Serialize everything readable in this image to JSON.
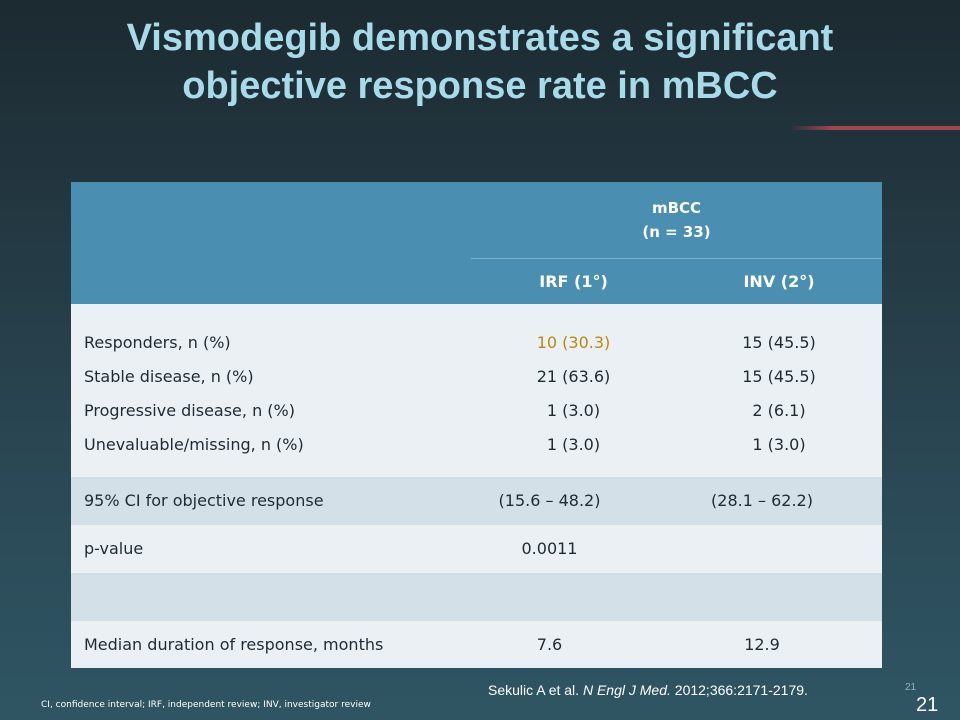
{
  "title": {
    "line1": "Vismodegib demonstrates a significant",
    "line2": "objective response rate in mBCC"
  },
  "table": {
    "group_header": {
      "line1": "mBCC",
      "line2": "(n = 33)"
    },
    "columns": [
      "IRF (1°)",
      "INV (2°)"
    ],
    "block_rows": [
      {
        "label": "Responders, n (%)",
        "irf": "10 (30.3)",
        "inv": "15 (45.5)"
      },
      {
        "label": "Stable disease, n (%)",
        "irf": "21 (63.6)",
        "inv": "15 (45.5)"
      },
      {
        "label": "Progressive disease, n (%)",
        "irf": "1 (3.0)",
        "inv": "2 (6.1)"
      },
      {
        "label": "Unevaluable/missing, n (%)",
        "irf": "1 (3.0)",
        "inv": "1 (3.0)"
      }
    ],
    "ci_row": {
      "label": "95% CI for objective response",
      "irf": "(15.6 – 48.2)",
      "inv": "(28.1 – 62.2)"
    },
    "p_row": {
      "label": "p-value",
      "irf": "0.0011",
      "inv": ""
    },
    "median_row": {
      "label": "Median duration of response, months",
      "irf": "7.6",
      "inv": "12.9"
    }
  },
  "citation": {
    "prefix": "Sekulic A et al. ",
    "journal": "N Engl J Med.",
    "suffix": " 2012;366:2171-2179."
  },
  "footnote": "CI, confidence interval; IRF, independent review; INV, investigator review",
  "page_number_small": "21",
  "page_number": "21",
  "colors": {
    "title": "#a8dbe9",
    "header_bg": "#4a8fb1",
    "highlight": "#b8890d",
    "row_light": "#ebf0f4",
    "row_dark": "#d3e0e8",
    "divider": "#a3454f"
  }
}
